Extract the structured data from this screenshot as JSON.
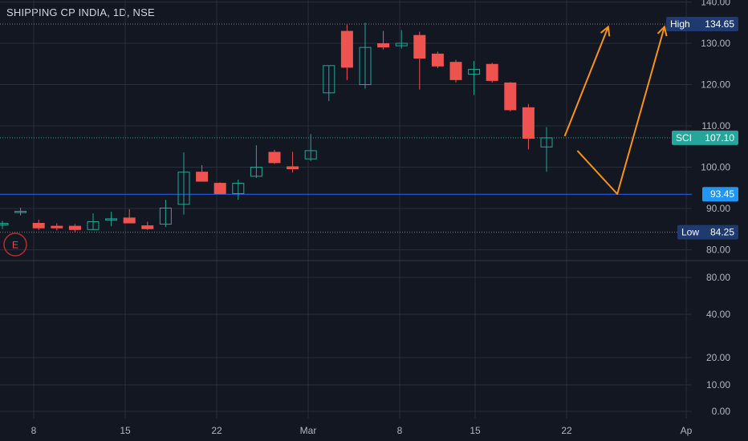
{
  "title": "SHIPPING CP INDIA, 1D, NSE",
  "earnings_marker": "E",
  "colors": {
    "background": "#131722",
    "grid": "#2a2e39",
    "up": "#26a69a",
    "down": "#ef5350",
    "price_line": "#2962ff",
    "price_tag": "#2196f3",
    "high_low_tag": "#1e3a6e",
    "last_tag": "#26a69a",
    "annotation": "#f7931a",
    "axis_text": "#b2b5be"
  },
  "chart_data": {
    "type": "candlestick",
    "y_scale": "piecewise (upper pane 80–140, lower compressed pane 0–80)",
    "y_ticks_upper": [
      "140.00",
      "130.00",
      "120.00",
      "110.00",
      "100.00",
      "90.00",
      "80.00"
    ],
    "y_ticks_lower": [
      "80.00",
      "40.00",
      "20.00",
      "10.00",
      "0.00"
    ],
    "x_ticks": [
      "8",
      "15",
      "22",
      "Mar",
      "8",
      "15",
      "22",
      "Ap"
    ],
    "markers": [
      {
        "label": "High",
        "value": "134.65"
      },
      {
        "label": "SCI",
        "value": "107.10"
      },
      {
        "label": "",
        "value": "93.45"
      },
      {
        "label": "Low",
        "value": "84.25"
      }
    ],
    "candles": [
      {
        "o": 86.0,
        "h": 87.0,
        "l": 85.0,
        "c": 86.4
      },
      {
        "o": 89.0,
        "h": 90.2,
        "l": 88.3,
        "c": 89.3
      },
      {
        "o": 86.5,
        "h": 87.3,
        "l": 84.8,
        "c": 85.2
      },
      {
        "o": 85.8,
        "h": 86.4,
        "l": 84.7,
        "c": 85.2
      },
      {
        "o": 85.8,
        "h": 86.2,
        "l": 84.3,
        "c": 84.8
      },
      {
        "o": 84.9,
        "h": 88.8,
        "l": 84.8,
        "c": 86.8
      },
      {
        "o": 87.3,
        "h": 89.2,
        "l": 85.7,
        "c": 87.5
      },
      {
        "o": 87.8,
        "h": 89.8,
        "l": 86.4,
        "c": 86.4
      },
      {
        "o": 85.9,
        "h": 86.8,
        "l": 84.8,
        "c": 85.0
      },
      {
        "o": 86.2,
        "h": 92.1,
        "l": 85.5,
        "c": 90.1
      },
      {
        "o": 91.0,
        "h": 103.6,
        "l": 88.5,
        "c": 98.8
      },
      {
        "o": 98.9,
        "h": 100.5,
        "l": 96.5,
        "c": 96.5
      },
      {
        "o": 96.2,
        "h": 96.3,
        "l": 93.4,
        "c": 93.5
      },
      {
        "o": 93.6,
        "h": 97.0,
        "l": 92.1,
        "c": 96.1
      },
      {
        "o": 97.8,
        "h": 105.3,
        "l": 97.4,
        "c": 100.0
      },
      {
        "o": 103.7,
        "h": 104.2,
        "l": 100.8,
        "c": 101.0
      },
      {
        "o": 100.2,
        "h": 103.7,
        "l": 98.7,
        "c": 99.5
      },
      {
        "o": 102.0,
        "h": 108.0,
        "l": 101.5,
        "c": 104.0
      },
      {
        "o": 118.0,
        "h": 124.6,
        "l": 116.0,
        "c": 124.6
      },
      {
        "o": 133.0,
        "h": 134.5,
        "l": 121.1,
        "c": 124.1
      },
      {
        "o": 120.0,
        "h": 135.0,
        "l": 119.0,
        "c": 129.0
      },
      {
        "o": 130.0,
        "h": 133.0,
        "l": 128.5,
        "c": 129.0
      },
      {
        "o": 129.4,
        "h": 133.2,
        "l": 128.7,
        "c": 130.0
      },
      {
        "o": 132.0,
        "h": 132.8,
        "l": 118.8,
        "c": 126.3
      },
      {
        "o": 127.5,
        "h": 128.0,
        "l": 124.0,
        "c": 124.4
      },
      {
        "o": 125.5,
        "h": 126.0,
        "l": 120.5,
        "c": 121.1
      },
      {
        "o": 122.5,
        "h": 125.7,
        "l": 117.5,
        "c": 123.7
      },
      {
        "o": 125.0,
        "h": 125.3,
        "l": 120.5,
        "c": 120.9
      },
      {
        "o": 120.5,
        "h": 120.6,
        "l": 113.5,
        "c": 113.8
      },
      {
        "o": 114.5,
        "h": 115.3,
        "l": 104.3,
        "c": 106.9
      },
      {
        "o": 104.9,
        "h": 109.7,
        "l": 98.9,
        "c": 107.1
      }
    ],
    "annotation_path_1": [
      {
        "bar": 31,
        "price": 107.5
      },
      {
        "bar": 33.4,
        "price": 134.0
      }
    ],
    "annotation_path_2": [
      {
        "bar": 31.7,
        "price": 104.0
      },
      {
        "bar": 33.9,
        "price": 93.5
      },
      {
        "bar": 36.5,
        "price": 134.0
      }
    ]
  }
}
